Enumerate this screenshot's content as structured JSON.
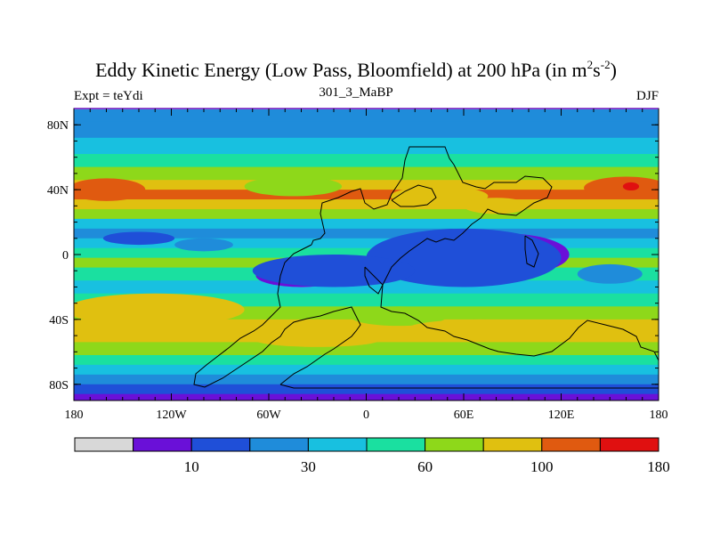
{
  "chart_data": {
    "type": "heatmap",
    "title": "Eddy Kinetic Energy (Low Pass, Bloomfield) at 200 hPa (in m",
    "title_sup1": "2",
    "title_mid": "s",
    "title_sup2": "-2",
    "title_end": ")",
    "subtitle_left": "Expt = teYdi",
    "subtitle_center": "301_3_MaBP",
    "subtitle_right": "DJF",
    "x_range": [
      -180,
      180
    ],
    "y_range": [
      -90,
      90
    ],
    "x_ticks": [
      {
        "value": -180,
        "label": "180"
      },
      {
        "value": -120,
        "label": "120W"
      },
      {
        "value": -60,
        "label": "60W"
      },
      {
        "value": 0,
        "label": "0"
      },
      {
        "value": 60,
        "label": "60E"
      },
      {
        "value": 120,
        "label": "120E"
      },
      {
        "value": 180,
        "label": "180"
      }
    ],
    "y_ticks": [
      {
        "value": 80,
        "label": "80N"
      },
      {
        "value": 40,
        "label": "40N"
      },
      {
        "value": 0,
        "label": "0"
      },
      {
        "value": -40,
        "label": "40S"
      },
      {
        "value": -80,
        "label": "80S"
      }
    ],
    "colorbar": {
      "colors": [
        "#d8d8d8",
        "#6a10d8",
        "#1f4fd8",
        "#1f8cda",
        "#18c0e0",
        "#1ae0a0",
        "#8ed81a",
        "#e0c010",
        "#e05a10",
        "#e01010"
      ],
      "labels": [
        {
          "index": 2,
          "text": "10"
        },
        {
          "index": 4,
          "text": "30"
        },
        {
          "index": 6,
          "text": "60"
        },
        {
          "index": 8,
          "text": "100"
        },
        {
          "index": 10,
          "text": "180"
        }
      ]
    },
    "field_bands": [
      {
        "lat": 90,
        "level": 3
      },
      {
        "lat": 82,
        "level": 3
      },
      {
        "lat": 72,
        "level": 4
      },
      {
        "lat": 62,
        "level": 5
      },
      {
        "lat": 54,
        "level": 6
      },
      {
        "lat": 46,
        "level": 7
      },
      {
        "lat": 40,
        "level": 8
      },
      {
        "lat": 34,
        "level": 7
      },
      {
        "lat": 28,
        "level": 6
      },
      {
        "lat": 22,
        "level": 4
      },
      {
        "lat": 16,
        "level": 3
      },
      {
        "lat": 10,
        "level": 4
      },
      {
        "lat": 4,
        "level": 5
      },
      {
        "lat": -2,
        "level": 6
      },
      {
        "lat": -8,
        "level": 5
      },
      {
        "lat": -16,
        "level": 4
      },
      {
        "lat": -24,
        "level": 5
      },
      {
        "lat": -32,
        "level": 6
      },
      {
        "lat": -40,
        "level": 7
      },
      {
        "lat": -46,
        "level": 7
      },
      {
        "lat": -54,
        "level": 6
      },
      {
        "lat": -62,
        "level": 5
      },
      {
        "lat": -68,
        "level": 4
      },
      {
        "lat": -74,
        "level": 3
      },
      {
        "lat": -80,
        "level": 2
      },
      {
        "lat": -86,
        "level": 1
      },
      {
        "lat": -90,
        "level": 1
      }
    ],
    "field_blobs": [
      {
        "lon": -160,
        "lat": 40,
        "rlon": 24,
        "rlat": 7,
        "level": 8
      },
      {
        "lon": 160,
        "lat": 41,
        "rlon": 26,
        "rlat": 7,
        "level": 8
      },
      {
        "lon": 163,
        "lat": 42,
        "rlon": 5,
        "rlat": 2.5,
        "level": 9
      },
      {
        "lon": -45,
        "lat": 42,
        "rlon": 30,
        "rlat": 6,
        "level": 6
      },
      {
        "lon": 45,
        "lat": 36,
        "rlon": 30,
        "rlat": 6,
        "level": 7
      },
      {
        "lon": 80,
        "lat": 30,
        "rlon": 20,
        "rlat": 5,
        "level": 7
      },
      {
        "lon": -140,
        "lat": 10,
        "rlon": 22,
        "rlat": 4,
        "level": 2
      },
      {
        "lon": -100,
        "lat": 6,
        "rlon": 18,
        "rlat": 4,
        "level": 3
      },
      {
        "lon": 85,
        "lat": 0,
        "rlon": 40,
        "rlat": 13,
        "level": 1
      },
      {
        "lon": 60,
        "lat": -2,
        "rlon": 60,
        "rlat": 18,
        "level": 2
      },
      {
        "lon": -40,
        "lat": -13,
        "rlon": 28,
        "rlat": 7,
        "level": 1
      },
      {
        "lon": -20,
        "lat": -10,
        "rlon": 50,
        "rlat": 10,
        "level": 2
      },
      {
        "lon": 150,
        "lat": -12,
        "rlon": 20,
        "rlat": 6,
        "level": 3
      },
      {
        "lon": -130,
        "lat": -34,
        "rlon": 55,
        "rlat": 10,
        "level": 7
      },
      {
        "lon": 20,
        "lat": -38,
        "rlon": 30,
        "rlat": 6,
        "level": 6
      },
      {
        "lon": 70,
        "lat": -46,
        "rlon": 45,
        "rlat": 6,
        "level": 7
      },
      {
        "lon": -30,
        "lat": -52,
        "rlon": 40,
        "rlat": 5,
        "level": 7
      }
    ]
  }
}
